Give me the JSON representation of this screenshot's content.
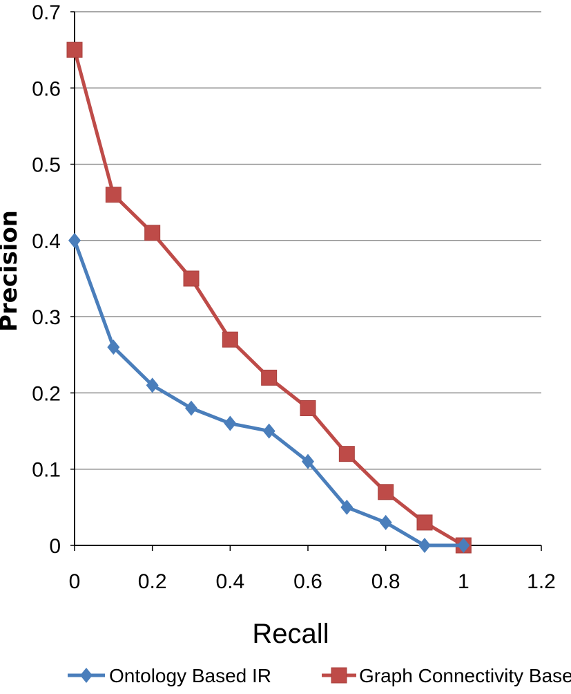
{
  "chart_data": {
    "type": "line",
    "title": "",
    "xlabel": "Recall",
    "ylabel": "Precision",
    "xlim": [
      0,
      1.2
    ],
    "ylim": [
      0,
      0.7
    ],
    "x_ticks": [
      "0",
      "0.2",
      "0.4",
      "0.6",
      "0.8",
      "1",
      "1.2"
    ],
    "y_ticks": [
      "0",
      "0.1",
      "0.2",
      "0.3",
      "0.4",
      "0.5",
      "0.6",
      "0.7"
    ],
    "grid": "horizontal",
    "legend_position": "bottom",
    "x": [
      0,
      0.1,
      0.2,
      0.3,
      0.4,
      0.5,
      0.6,
      0.7,
      0.8,
      0.9,
      1.0
    ],
    "series": [
      {
        "name": "Ontology Based IR",
        "color": "#4A7EBB",
        "marker": "diamond",
        "values": [
          0.4,
          0.26,
          0.21,
          0.18,
          0.16,
          0.15,
          0.11,
          0.05,
          0.03,
          0.0,
          0.0
        ]
      },
      {
        "name": "Graph Connectivity Based IR",
        "color": "#BE4B48",
        "marker": "square",
        "values": [
          0.65,
          0.46,
          0.41,
          0.35,
          0.27,
          0.22,
          0.18,
          0.12,
          0.07,
          0.03,
          0.0
        ]
      }
    ]
  }
}
